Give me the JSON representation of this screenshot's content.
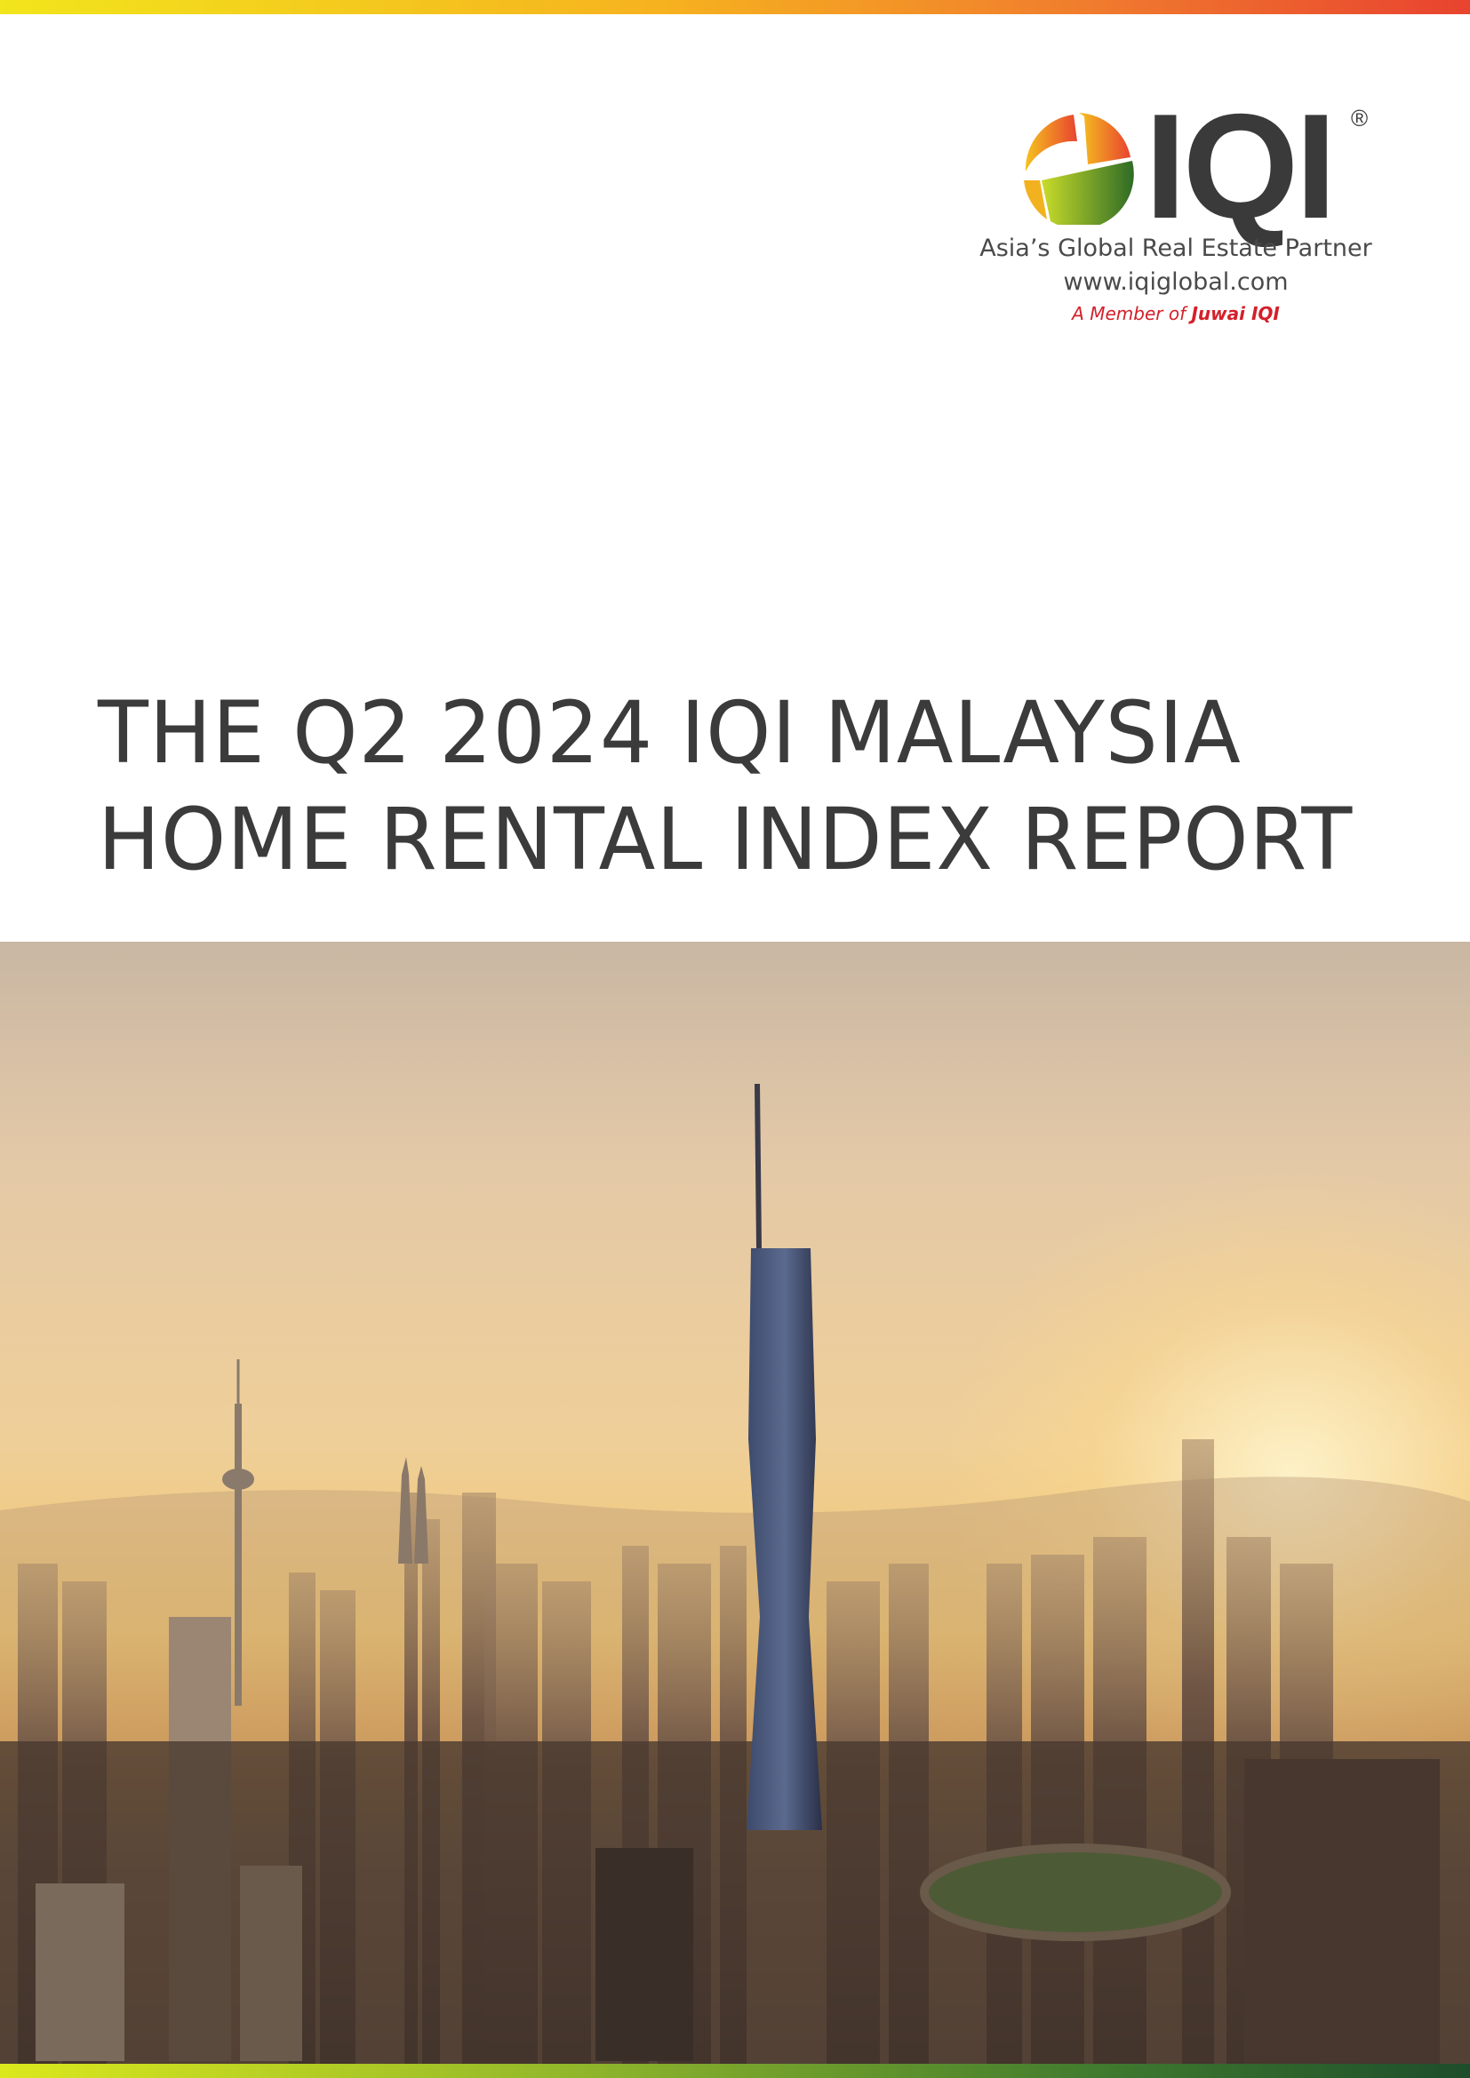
{
  "brand": {
    "name": "IQI",
    "registered_mark": "®",
    "tagline": "Asia’s Global Real Estate Partner",
    "website": "www.iqiglobal.com",
    "member_prefix": "A Member of ",
    "member_of": "Juwai IQI",
    "colors": {
      "dark": "#3a3a3a",
      "red": "#d4202a",
      "orange": "#f6a01f",
      "green": "#5a9a2a"
    }
  },
  "report": {
    "title_line1": "THE Q2 2024 IQI MALAYSIA",
    "title_line2": "HOME RENTAL INDEX REPORT"
  },
  "cover_image": {
    "subject": "Kuala Lumpur skyline at sunrise"
  }
}
